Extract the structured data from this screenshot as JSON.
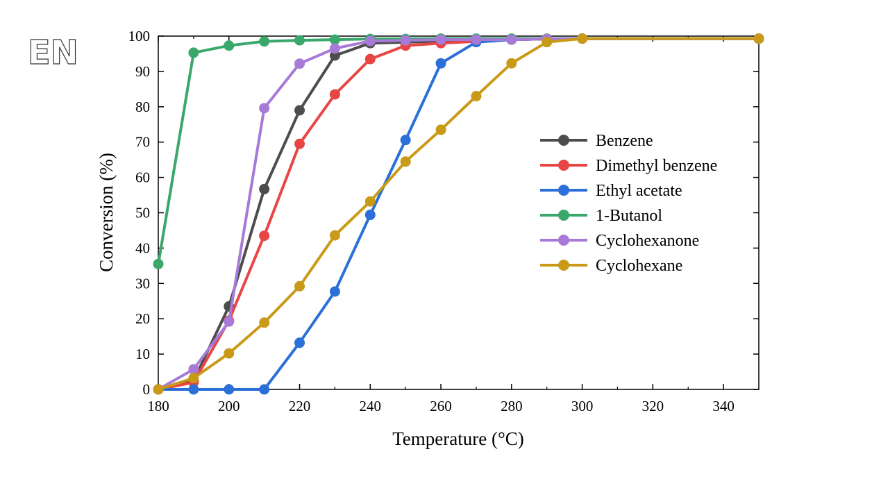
{
  "logo": {
    "text": "EN"
  },
  "chart_data": {
    "type": "line",
    "title": "",
    "xlabel": "Temperature (°C)",
    "ylabel": "Conversion (%)",
    "xlim": [
      180,
      350
    ],
    "ylim": [
      0,
      100
    ],
    "xticks": [
      180,
      200,
      220,
      240,
      260,
      280,
      300,
      320,
      340
    ],
    "yticks": [
      0,
      10,
      20,
      30,
      40,
      50,
      60,
      70,
      80,
      90,
      100
    ],
    "grid": false,
    "legend_position": "center-right",
    "series": [
      {
        "name": "Benzene",
        "color": "#4d4d4d",
        "x": [
          180,
          190,
          200,
          210,
          220,
          230,
          240,
          250,
          260,
          270,
          280,
          290,
          300,
          350
        ],
        "y": [
          0,
          2.5,
          23.5,
          56.7,
          79,
          94.5,
          98,
          98.3,
          98.5,
          98.7,
          99,
          99.2,
          99.3,
          99.3
        ]
      },
      {
        "name": "Dimethyl benzene",
        "color": "#e84545",
        "x": [
          180,
          190,
          200,
          210,
          220,
          230,
          240,
          250,
          260,
          270,
          280,
          290,
          300,
          350
        ],
        "y": [
          0,
          2,
          19.5,
          43.5,
          69.5,
          83.5,
          93.5,
          97.3,
          98,
          98.5,
          99,
          99.2,
          99.3,
          99.3
        ]
      },
      {
        "name": "Ethyl acetate",
        "color": "#2b6fd8",
        "x": [
          180,
          190,
          200,
          210,
          220,
          230,
          240,
          250,
          260,
          270,
          280,
          290,
          300,
          350
        ],
        "y": [
          0,
          0,
          0,
          0,
          13.2,
          27.7,
          49.4,
          70.6,
          92.3,
          98.3,
          99,
          99.2,
          99.3,
          99.3
        ]
      },
      {
        "name": "1-Butanol",
        "color": "#3aa86b",
        "x": [
          180,
          190,
          200,
          210,
          220,
          230,
          240,
          250,
          260,
          270,
          280,
          290,
          300,
          350
        ],
        "y": [
          35.5,
          95.3,
          97.3,
          98.5,
          98.8,
          99,
          99.2,
          99.2,
          99.3,
          99.3,
          99.3,
          99.3,
          99.3,
          99.3
        ]
      },
      {
        "name": "Cyclohexanone",
        "color": "#a77ad8",
        "x": [
          180,
          190,
          200,
          210,
          220,
          230,
          240,
          250,
          260,
          270,
          280,
          290,
          300,
          350
        ],
        "y": [
          0,
          5.7,
          19.2,
          79.6,
          92.2,
          96.5,
          98.6,
          98.8,
          99,
          99,
          99,
          99.2,
          99.3,
          99.3
        ]
      },
      {
        "name": "Cyclohexane",
        "color": "#c99a18",
        "x": [
          180,
          190,
          200,
          210,
          220,
          230,
          240,
          250,
          260,
          270,
          280,
          290,
          300,
          350
        ],
        "y": [
          0,
          3.2,
          10.2,
          18.9,
          29.2,
          43.6,
          53.2,
          64.5,
          73.5,
          83,
          92.3,
          98.3,
          99.3,
          99.3
        ]
      }
    ]
  }
}
